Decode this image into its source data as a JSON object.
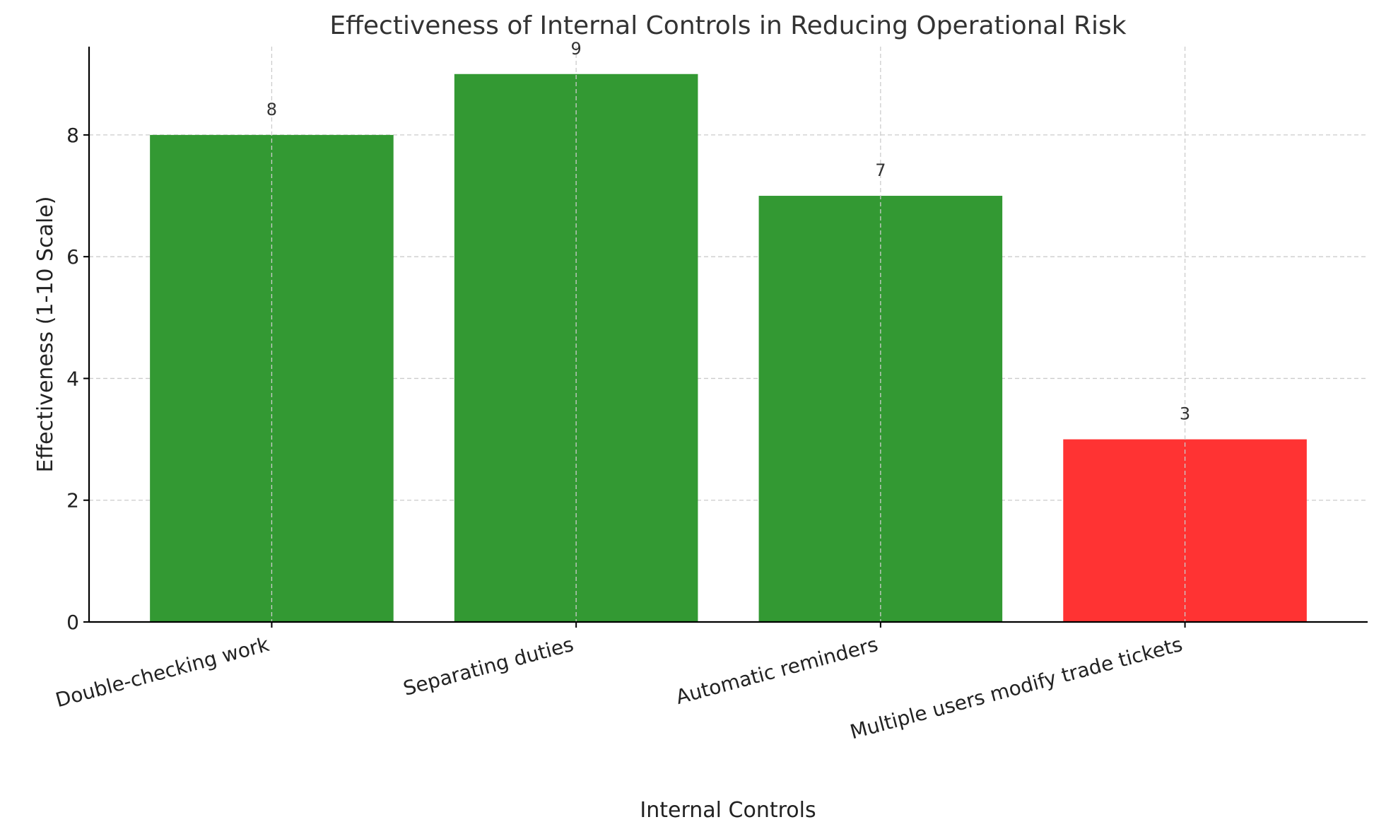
{
  "chart_data": {
    "type": "bar",
    "title": "Effectiveness of Internal Controls in Reducing Operational Risk",
    "xlabel": "Internal Controls",
    "ylabel": "Effectiveness (1-10 Scale)",
    "categories": [
      "Double-checking work",
      "Separating duties",
      "Automatic reminders",
      "Multiple users modify trade tickets"
    ],
    "values": [
      8,
      9,
      7,
      3
    ],
    "value_labels": [
      "8",
      "9",
      "7",
      "3"
    ],
    "bar_colors": [
      "#339933",
      "#339933",
      "#339933",
      "#ff3333"
    ],
    "ylim": [
      0,
      9.45
    ],
    "yticks": [
      0,
      2,
      4,
      6,
      8
    ],
    "ytick_labels": [
      "0",
      "2",
      "4",
      "6",
      "8"
    ],
    "grid": true
  }
}
